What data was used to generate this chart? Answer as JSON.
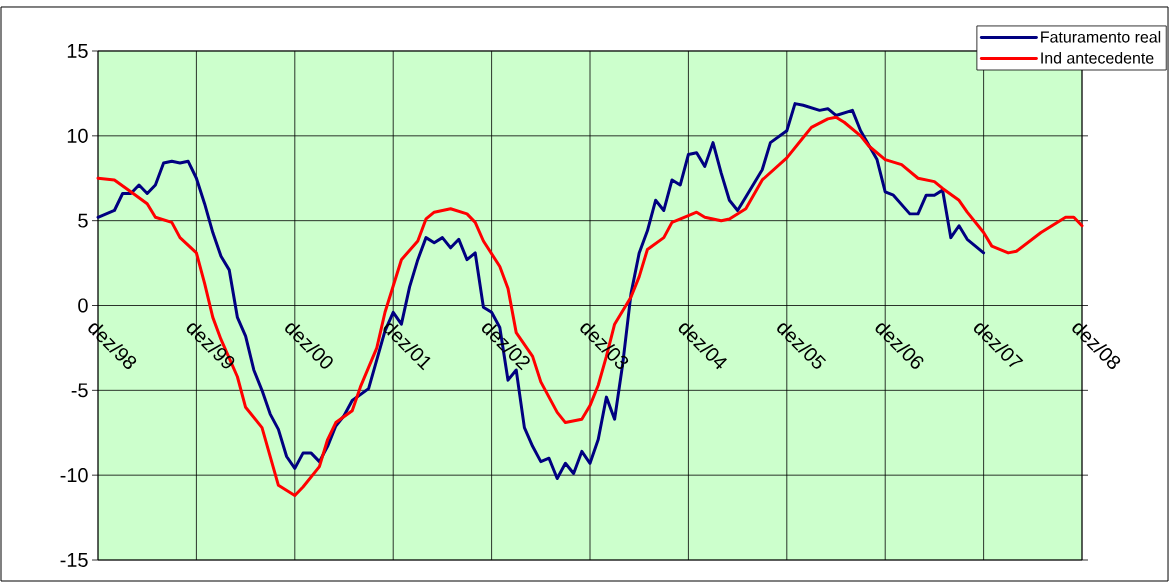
{
  "chart_data": {
    "type": "line",
    "xlim": [
      "1998-12",
      "2008-12"
    ],
    "xticks": [
      {
        "value": "1998-12",
        "label": "dez/98"
      },
      {
        "value": "1999-12",
        "label": "dez/99"
      },
      {
        "value": "2000-12",
        "label": "dez/00"
      },
      {
        "value": "2001-12",
        "label": "dez/01"
      },
      {
        "value": "2002-12",
        "label": "dez/02"
      },
      {
        "value": "2003-12",
        "label": "dez/03"
      },
      {
        "value": "2004-12",
        "label": "dez/04"
      },
      {
        "value": "2005-12",
        "label": "dez/05"
      },
      {
        "value": "2006-12",
        "label": "dez/06"
      },
      {
        "value": "2007-12",
        "label": "dez/07"
      },
      {
        "value": "2008-12",
        "label": "dez/08"
      }
    ],
    "ylim": [
      -15,
      15
    ],
    "yticks": [
      -15,
      -10,
      -5,
      0,
      5,
      10,
      15
    ],
    "grid": true,
    "legend": "top right",
    "line_style": "solid",
    "series": [
      {
        "name": "Faturamento real",
        "color": "#000080",
        "x": [
          "1998-12",
          "1999-02",
          "1999-03",
          "1999-04",
          "1999-05",
          "1999-06",
          "1999-07",
          "1999-08",
          "1999-09",
          "1999-10",
          "1999-11",
          "1999-12",
          "2000-01",
          "2000-02",
          "2000-03",
          "2000-04",
          "2000-05",
          "2000-06",
          "2000-07",
          "2000-08",
          "2000-09",
          "2000-10",
          "2000-11",
          "2000-12",
          "2001-01",
          "2001-02",
          "2001-03",
          "2001-04",
          "2001-05",
          "2001-06",
          "2001-07",
          "2001-09",
          "2001-11",
          "2001-12",
          "2002-01",
          "2002-02",
          "2002-03",
          "2002-04",
          "2002-05",
          "2002-06",
          "2002-07",
          "2002-08",
          "2002-09",
          "2002-10",
          "2002-11",
          "2002-12",
          "2003-01",
          "2003-02",
          "2003-03",
          "2003-04",
          "2003-05",
          "2003-06",
          "2003-07",
          "2003-08",
          "2003-09",
          "2003-10",
          "2003-11",
          "2003-12",
          "2004-01",
          "2004-02",
          "2004-03",
          "2004-04",
          "2004-05",
          "2004-06",
          "2004-07",
          "2004-08",
          "2004-09",
          "2004-10",
          "2004-11",
          "2004-12",
          "2005-01",
          "2005-02",
          "2005-03",
          "2005-04",
          "2005-05",
          "2005-06",
          "2005-07",
          "2005-09",
          "2005-10",
          "2005-12",
          "2006-01",
          "2006-02",
          "2006-04",
          "2006-05",
          "2006-06",
          "2006-08",
          "2006-09",
          "2006-11",
          "2006-12",
          "2007-01",
          "2007-03",
          "2007-04",
          "2007-05",
          "2007-06",
          "2007-07",
          "2007-08",
          "2007-09",
          "2007-10",
          "2007-12"
        ],
        "values": [
          5.2,
          5.6,
          6.6,
          6.6,
          7.1,
          6.6,
          7.1,
          8.4,
          8.5,
          8.4,
          8.5,
          7.5,
          6.0,
          4.3,
          2.9,
          2.1,
          -0.7,
          -1.8,
          -3.8,
          -5.0,
          -6.4,
          -7.3,
          -8.9,
          -9.6,
          -8.7,
          -8.7,
          -9.2,
          -8.3,
          -7.1,
          -6.5,
          -5.6,
          -4.9,
          -1.5,
          -0.4,
          -1.1,
          1.1,
          2.7,
          4.0,
          3.7,
          4.0,
          3.4,
          3.9,
          2.7,
          3.1,
          -0.1,
          -0.4,
          -1.3,
          -4.4,
          -3.8,
          -7.2,
          -8.3,
          -9.2,
          -9.0,
          -10.2,
          -9.3,
          -9.9,
          -8.6,
          -9.3,
          -7.9,
          -5.4,
          -6.7,
          -3.4,
          0.7,
          3.1,
          4.4,
          6.2,
          5.6,
          7.4,
          7.1,
          8.9,
          9.0,
          8.2,
          9.6,
          7.8,
          6.2,
          5.6,
          6.4,
          8.0,
          9.6,
          10.3,
          11.9,
          11.8,
          11.5,
          11.6,
          11.2,
          11.5,
          10.3,
          8.6,
          6.7,
          6.5,
          5.4,
          5.4,
          6.5,
          6.5,
          6.8,
          4.0,
          4.7,
          3.9,
          3.1
        ]
      },
      {
        "name": "Ind antecedente",
        "color": "#ff0000",
        "x": [
          "1998-12",
          "1999-02",
          "1999-04",
          "1999-06",
          "1999-07",
          "1999-09",
          "1999-10",
          "1999-12",
          "2000-01",
          "2000-02",
          "2000-03",
          "2000-05",
          "2000-06",
          "2000-08",
          "2000-09",
          "2000-10",
          "2000-12",
          "2001-01",
          "2001-03",
          "2001-04",
          "2001-05",
          "2001-07",
          "2001-08",
          "2001-10",
          "2001-11",
          "2002-01",
          "2002-03",
          "2002-04",
          "2002-05",
          "2002-07",
          "2002-09",
          "2002-10",
          "2002-11",
          "2003-01",
          "2003-02",
          "2003-03",
          "2003-05",
          "2003-06",
          "2003-08",
          "2003-09",
          "2003-11",
          "2003-12",
          "2004-01",
          "2004-02",
          "2004-03",
          "2004-05",
          "2004-06",
          "2004-07",
          "2004-09",
          "2004-10",
          "2004-12",
          "2005-01",
          "2005-02",
          "2005-04",
          "2005-05",
          "2005-07",
          "2005-09",
          "2005-12",
          "2006-02",
          "2006-03",
          "2006-05",
          "2006-06",
          "2006-07",
          "2006-09",
          "2006-10",
          "2006-12",
          "2007-02",
          "2007-04",
          "2007-06",
          "2007-07",
          "2007-09",
          "2007-10",
          "2007-12",
          "2008-01",
          "2008-03",
          "2008-04",
          "2008-07",
          "2008-10",
          "2008-11",
          "2008-12"
        ],
        "values": [
          7.5,
          7.4,
          6.7,
          6.0,
          5.2,
          4.9,
          4.0,
          3.1,
          1.3,
          -0.7,
          -2.0,
          -4.2,
          -6.0,
          -7.2,
          -8.9,
          -10.6,
          -11.2,
          -10.7,
          -9.5,
          -7.9,
          -6.9,
          -6.2,
          -4.8,
          -2.5,
          -0.4,
          2.7,
          3.8,
          5.1,
          5.5,
          5.7,
          5.4,
          4.9,
          3.8,
          2.3,
          1.0,
          -1.6,
          -3.0,
          -4.5,
          -6.3,
          -6.9,
          -6.7,
          -5.9,
          -4.7,
          -3.0,
          -1.1,
          0.5,
          1.7,
          3.3,
          4.0,
          4.9,
          5.3,
          5.5,
          5.2,
          5.0,
          5.1,
          5.7,
          7.4,
          8.7,
          9.9,
          10.5,
          11.0,
          11.1,
          10.8,
          10.0,
          9.4,
          8.6,
          8.3,
          7.5,
          7.3,
          6.9,
          6.2,
          5.5,
          4.3,
          3.5,
          3.1,
          3.2,
          4.3,
          5.2,
          5.2,
          4.7
        ]
      }
    ]
  }
}
